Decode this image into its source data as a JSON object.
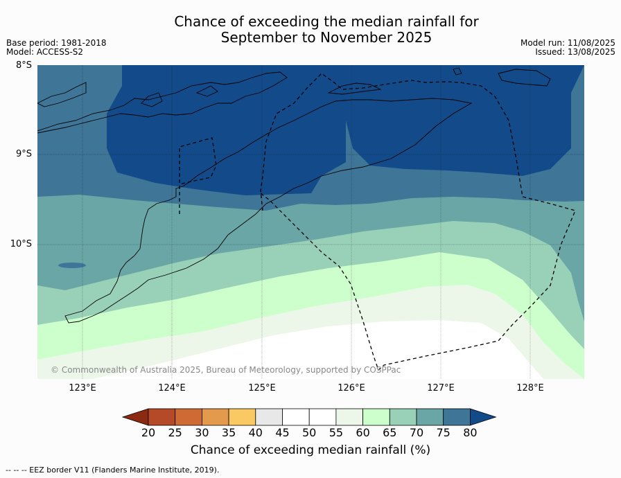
{
  "title": {
    "line1": "Chance of exceeding the median rainfall for",
    "line2": "September to November 2025"
  },
  "meta": {
    "base_period": "Base period: 1981-2018",
    "model": "Model: ACCESS-S2",
    "model_run": "Model run: 11/08/2025",
    "issued": "Issued: 13/08/2025"
  },
  "axes": {
    "lat_labels": [
      "8°S",
      "9°S",
      "10°S"
    ],
    "lon_labels": [
      "123°E",
      "124°E",
      "125°E",
      "126°E",
      "127°E",
      "128°E"
    ]
  },
  "copyright": "© Commonwealth of Australia 2025, Bureau of Meteorology, supported by COSPPac",
  "legend": {
    "title": "Chance of exceeding median rainfall (%)",
    "ticks": [
      "20",
      "25",
      "30",
      "35",
      "40",
      "45",
      "50",
      "55",
      "60",
      "65",
      "70",
      "75",
      "80"
    ],
    "colors": [
      "#8b2a10",
      "#b54a28",
      "#cf6a35",
      "#e39a4d",
      "#fbc964",
      "#e8e8e8",
      "#ffffff",
      "#ffffff",
      "#ecf7ea",
      "#ccffcc",
      "#99d0b8",
      "#6aa6a6",
      "#3f7597",
      "#134b8a"
    ]
  },
  "footer": "--  --  -- EEZ border V11 (Flanders Marine Institute, 2019)."
}
